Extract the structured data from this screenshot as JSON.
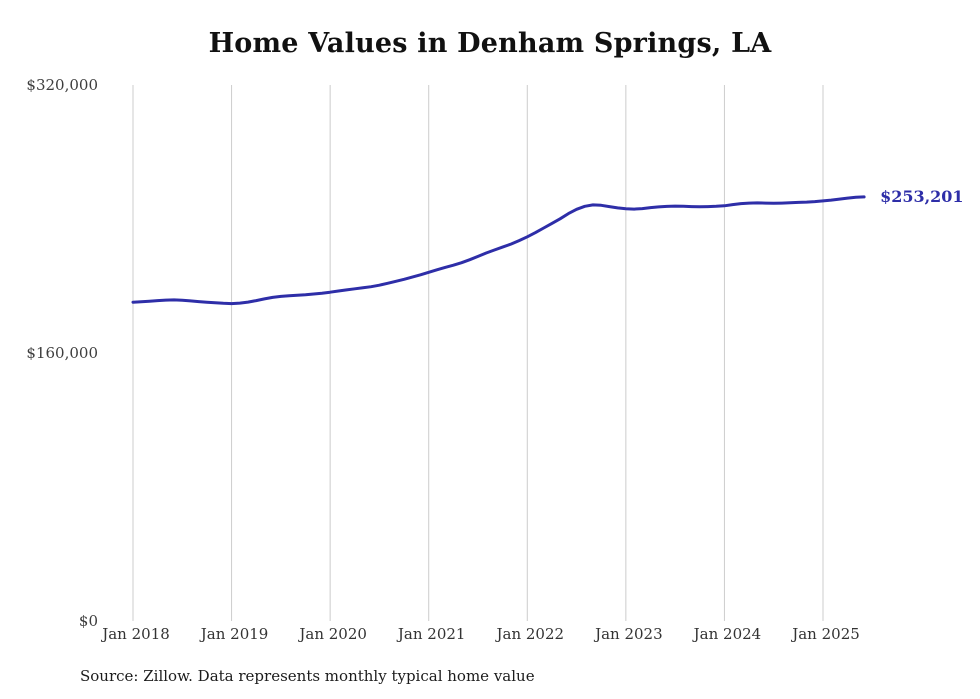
{
  "title": "Home Values in Denham Springs, LA",
  "source_note": "Source: Zillow. Data represents monthly typical home value",
  "end_label": "$253,201",
  "chart_data": {
    "type": "line",
    "title": "Home Values in Denham Springs, LA",
    "xlabel": "",
    "ylabel": "",
    "x_tick_labels": [
      "Jan 2018",
      "Jan 2019",
      "Jan 2020",
      "Jan 2021",
      "Jan 2022",
      "Jan 2023",
      "Jan 2024",
      "Jan 2025"
    ],
    "y_ticks": [
      0,
      160000,
      320000
    ],
    "y_tick_labels": [
      "$0",
      "$160,000",
      "$320,000"
    ],
    "ylim": [
      0,
      320000
    ],
    "grid": "vertical-only",
    "legend": "none",
    "line_color": "#2e2ea8",
    "grid_color": "#cccccc",
    "final_value": 253201,
    "series": [
      {
        "name": "Monthly typical home value",
        "start_month": "2018-01",
        "values": [
          190300,
          190600,
          190900,
          191300,
          191600,
          191700,
          191500,
          191100,
          190700,
          190300,
          190000,
          189700,
          189500,
          189800,
          190400,
          191300,
          192300,
          193200,
          193800,
          194200,
          194500,
          194800,
          195200,
          195700,
          196300,
          197000,
          197700,
          198300,
          198900,
          199600,
          200500,
          201600,
          202800,
          204000,
          205300,
          206700,
          208200,
          209700,
          211100,
          212400,
          213900,
          215700,
          217700,
          219700,
          221500,
          223200,
          225000,
          227100,
          229400,
          231900,
          234600,
          237400,
          240100,
          243200,
          245800,
          247600,
          248400,
          248200,
          247400,
          246600,
          246100,
          245900,
          246200,
          246800,
          247200,
          247500,
          247700,
          247600,
          247400,
          247300,
          247400,
          247600,
          247900,
          248600,
          249200,
          249500,
          249600,
          249500,
          249400,
          249500,
          249700,
          249900,
          250100,
          250400,
          250800,
          251300,
          251900,
          252500,
          253000,
          253201
        ]
      }
    ]
  }
}
